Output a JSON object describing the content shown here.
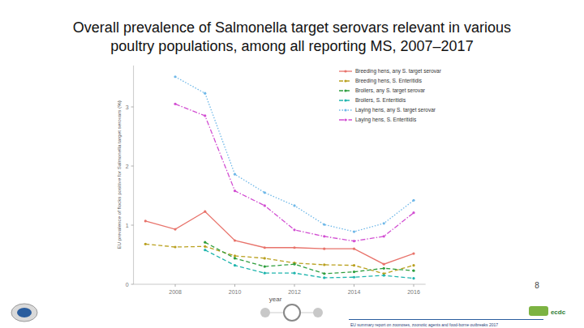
{
  "chart_data": {
    "type": "line",
    "title": "Overall prevalence of Salmonella target serovars relevant in various poultry populations, among all reporting MS, 2007–2017",
    "x_label": "year",
    "y_label": "EU prevalence of flocks positive for Salmonella target serovars (%)",
    "x": [
      2007,
      2008,
      2009,
      2010,
      2011,
      2012,
      2013,
      2014,
      2015,
      2016
    ],
    "series": [
      {
        "name": "Breeding hens, any S. target serovar",
        "color": "#e8736b",
        "line_style": "solid",
        "marker": "circle",
        "values": [
          1.07,
          0.93,
          1.23,
          0.74,
          0.62,
          0.62,
          0.6,
          0.6,
          0.34,
          0.52
        ]
      },
      {
        "name": "Breeding hens, S. Enteritidis",
        "color": "#b9a01e",
        "line_style": "dashed",
        "marker": "circle",
        "values": [
          0.68,
          0.63,
          0.64,
          0.48,
          0.44,
          0.36,
          0.33,
          0.32,
          0.18,
          0.32
        ]
      },
      {
        "name": "Broilers, any S. target serovar",
        "color": "#2e9e3e",
        "line_style": "dashed",
        "marker": "circle",
        "values": [
          null,
          null,
          0.71,
          0.44,
          0.3,
          0.34,
          0.18,
          0.21,
          0.27,
          0.23
        ]
      },
      {
        "name": "Broilers, S. Enteritidis",
        "color": "#1fb5ad",
        "line_style": "dashed",
        "marker": "circle",
        "values": [
          null,
          null,
          0.58,
          0.32,
          0.19,
          0.19,
          0.11,
          0.12,
          0.15,
          0.1
        ]
      },
      {
        "name": "Laying hens, any S. target serovar",
        "color": "#6fb8e8",
        "line_style": "dotted",
        "marker": "circle",
        "values": [
          null,
          3.51,
          3.23,
          1.86,
          1.55,
          1.33,
          1.01,
          0.89,
          1.03,
          1.42
        ]
      },
      {
        "name": "Laying hens, S. Enteritidis",
        "color": "#d24fd2",
        "line_style": "dashdot",
        "marker": "circle",
        "values": [
          null,
          3.05,
          2.85,
          1.58,
          1.33,
          0.92,
          0.81,
          0.73,
          0.81,
          1.21
        ]
      }
    ],
    "xlim": [
      2006.6,
      2016.4
    ],
    "xticks": [
      2008,
      2010,
      2012,
      2014,
      2016
    ],
    "ylim": [
      0,
      3.7
    ],
    "yticks": [
      0,
      1,
      2,
      3
    ],
    "grid": false,
    "legend": "top-right"
  },
  "slide": {
    "page_number": "8",
    "footer": "EU summary report on zoonoses, zoonotic agents and food-borne outbreaks 2017",
    "logo": "ecdc"
  }
}
